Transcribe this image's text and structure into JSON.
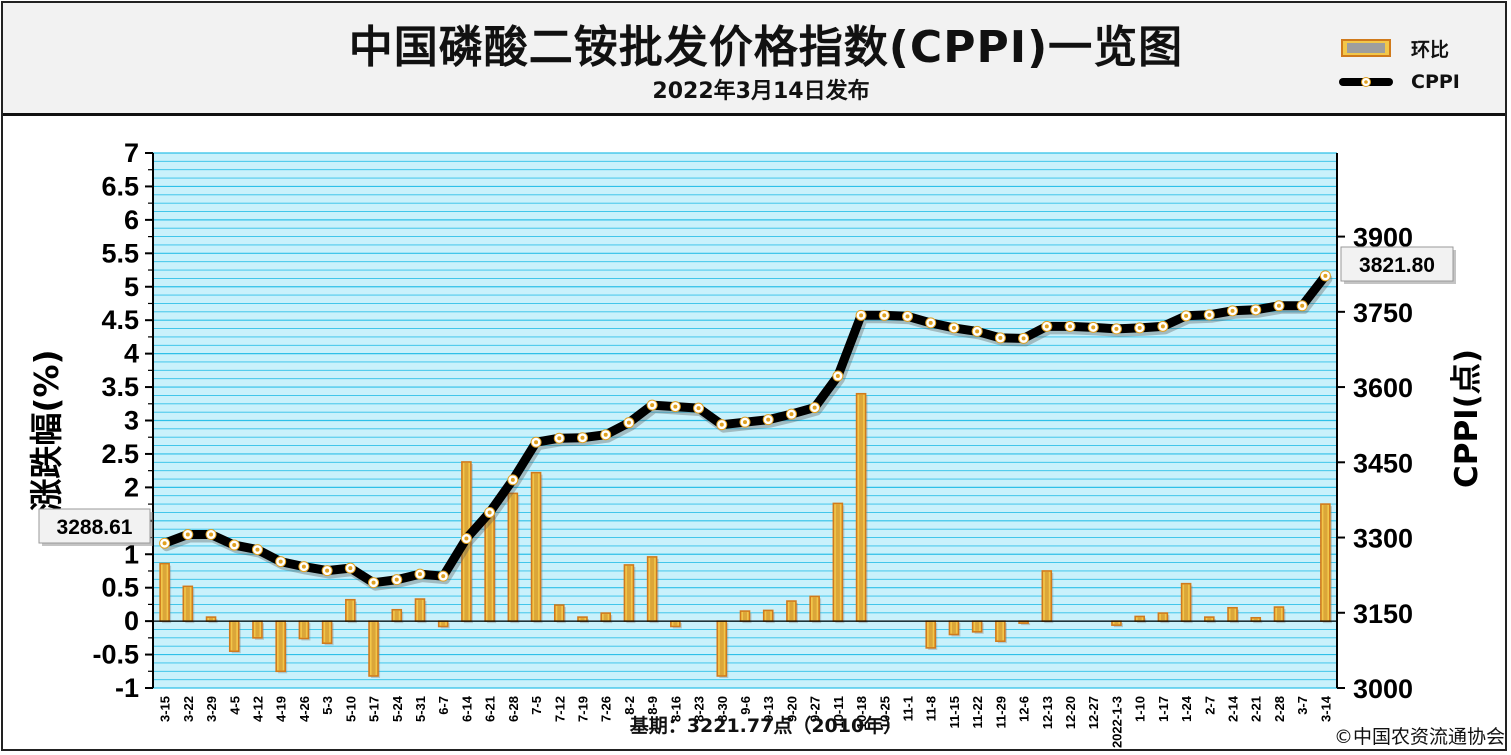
{
  "header": {
    "title": "中国磷酸二铵批发价格指数(CPPI)一览图",
    "subtitle": "2022年3月14日发布"
  },
  "legend": [
    {
      "name": "环比",
      "kind": "bar"
    },
    {
      "name": "CPPI",
      "kind": "line"
    }
  ],
  "footer": {
    "basis": "基期：3221.77点（2010年）",
    "copyright": "©中国农资流通协会"
  },
  "colors": {
    "plot_bg": "#c9f1fb",
    "grid": "#2ec0e8",
    "bar_fill": "#f2c74a",
    "bar_edge": "#d07a1c",
    "line": "#000000",
    "marker": "#ffffff",
    "marker_dot": "#e0a020"
  },
  "chart_data": {
    "type": "bar+line",
    "categories": [
      "3-15",
      "3-22",
      "3-29",
      "4-5",
      "4-12",
      "4-19",
      "4-26",
      "5-3",
      "5-10",
      "5-17",
      "5-24",
      "5-31",
      "6-7",
      "6-14",
      "6-21",
      "6-28",
      "7-5",
      "7-12",
      "7-19",
      "7-26",
      "8-2",
      "8-9",
      "8-16",
      "8-23",
      "8-30",
      "9-6",
      "9-13",
      "9-20",
      "9-27",
      "10-11",
      "10-18",
      "10-25",
      "11-1",
      "11-8",
      "11-15",
      "11-22",
      "11-29",
      "12-6",
      "12-13",
      "12-20",
      "12-27",
      "2022-1-3",
      "1-10",
      "1-17",
      "1-24",
      "2-7",
      "2-14",
      "2-21",
      "2-28",
      "3-7",
      "3-14"
    ],
    "series": [
      {
        "name": "环比",
        "type": "bar",
        "axis": "left",
        "values": [
          0.86,
          0.52,
          0.06,
          -0.45,
          -0.25,
          -0.75,
          -0.26,
          -0.33,
          0.32,
          -0.82,
          0.17,
          0.33,
          -0.08,
          2.38,
          1.58,
          1.91,
          2.22,
          0.24,
          0.06,
          0.12,
          0.84,
          0.96,
          -0.08,
          0.0,
          -0.82,
          0.15,
          0.16,
          0.3,
          0.37,
          1.76,
          3.4,
          0.0,
          0.0,
          -0.4,
          -0.2,
          -0.16,
          -0.3,
          -0.03,
          0.75,
          0.0,
          0.0,
          -0.06,
          0.07,
          0.12,
          0.56,
          0.06,
          0.2,
          0.05,
          0.21,
          0.0,
          1.75
        ]
      },
      {
        "name": "CPPI",
        "type": "line",
        "axis": "right",
        "values": [
          3288.61,
          3306,
          3306,
          3285,
          3276,
          3252,
          3242,
          3234,
          3239,
          3210,
          3216,
          3227,
          3223,
          3298,
          3350,
          3415,
          3490,
          3498,
          3499,
          3505,
          3529,
          3564,
          3561,
          3558,
          3525,
          3530,
          3535,
          3546,
          3559,
          3622,
          3743,
          3743,
          3741,
          3728,
          3718,
          3711,
          3698,
          3697,
          3721,
          3721,
          3719,
          3716,
          3718,
          3721,
          3742,
          3744,
          3752,
          3754,
          3762,
          3762,
          3821.8
        ]
      }
    ],
    "y_left": {
      "label": "涨跌幅(%)",
      "range": [
        -1,
        7
      ],
      "ticks": [
        "-1",
        "-0.5",
        "0",
        "0.5",
        "1",
        "1.5",
        "2",
        "2.5",
        "3",
        "3.5",
        "4",
        "4.5",
        "5",
        "5.5",
        "6",
        "6.5",
        "7"
      ]
    },
    "y_right": {
      "label": "CPPI(点)",
      "range": [
        3000,
        3900
      ],
      "ticks": [
        "3000",
        "3150",
        "3300",
        "3450",
        "3600",
        "3750",
        "3900"
      ]
    },
    "annotations": [
      {
        "text": "3288.61",
        "target": "first"
      },
      {
        "text": "3821.80",
        "target": "last"
      }
    ],
    "grid": true
  }
}
